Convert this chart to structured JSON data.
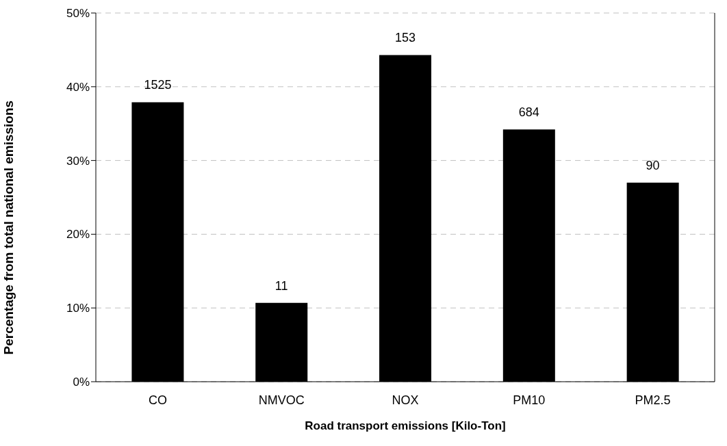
{
  "chart_data": {
    "type": "bar",
    "xlabel": "Road transport emissions [Kilo-Ton]",
    "ylabel": "Percentage from total national emissions",
    "categories": [
      "CO",
      "NMVOC",
      "NOX",
      "PM10",
      "PM2.5"
    ],
    "values": [
      37.9,
      10.7,
      44.3,
      34.2,
      27.0
    ],
    "annotations": [
      {
        "text": "1525",
        "x": "CO",
        "y": 37.9
      },
      {
        "text": "11",
        "x": "NMVOC",
        "y": 10.7
      },
      {
        "text": "153",
        "x": "NOX",
        "y": 44.3
      },
      {
        "text": "684",
        "x": "PM10",
        "y": 34.2
      },
      {
        "text": "90",
        "x": "PM2.5",
        "y": 27.0
      }
    ],
    "color": "#000000",
    "ylim": [
      0,
      50
    ],
    "yticks": [
      {
        "value": 0,
        "label": "0%"
      },
      {
        "value": 10,
        "label": "10%"
      },
      {
        "value": 20,
        "label": "20%"
      },
      {
        "value": 30,
        "label": "30%"
      },
      {
        "value": 40,
        "label": "40%"
      },
      {
        "value": 50,
        "label": "50%"
      }
    ],
    "grid": "y"
  }
}
